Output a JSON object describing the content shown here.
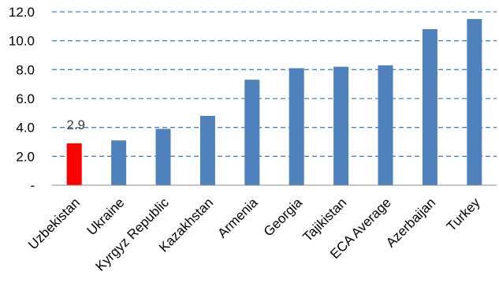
{
  "chart_data": {
    "type": "bar",
    "title": "",
    "xlabel": "",
    "ylabel": "",
    "categories": [
      "Uzbekistan",
      "Ukraine",
      "Kyrgyz Republic",
      "Kazakhstan",
      "Armenia",
      "Georgia",
      "Tajikistan",
      "ECA Average",
      "Azerbaijan",
      "Turkey"
    ],
    "values": [
      2.9,
      3.1,
      3.9,
      4.8,
      7.3,
      8.1,
      8.2,
      8.3,
      10.8,
      11.5
    ],
    "ylim": [
      0,
      12
    ],
    "yticks": [
      "-",
      "2.0",
      "4.0",
      "6.0",
      "8.0",
      "10.0",
      "12.0"
    ],
    "data_labels": [
      {
        "index": 0,
        "text": "2.9"
      }
    ],
    "grid": true,
    "grid_style": "dashed",
    "legend": "none",
    "colors": {
      "bar": "#4f81bd",
      "highlight": "#ff0000",
      "grid": "#4f81bd"
    },
    "highlight_index": 0
  }
}
